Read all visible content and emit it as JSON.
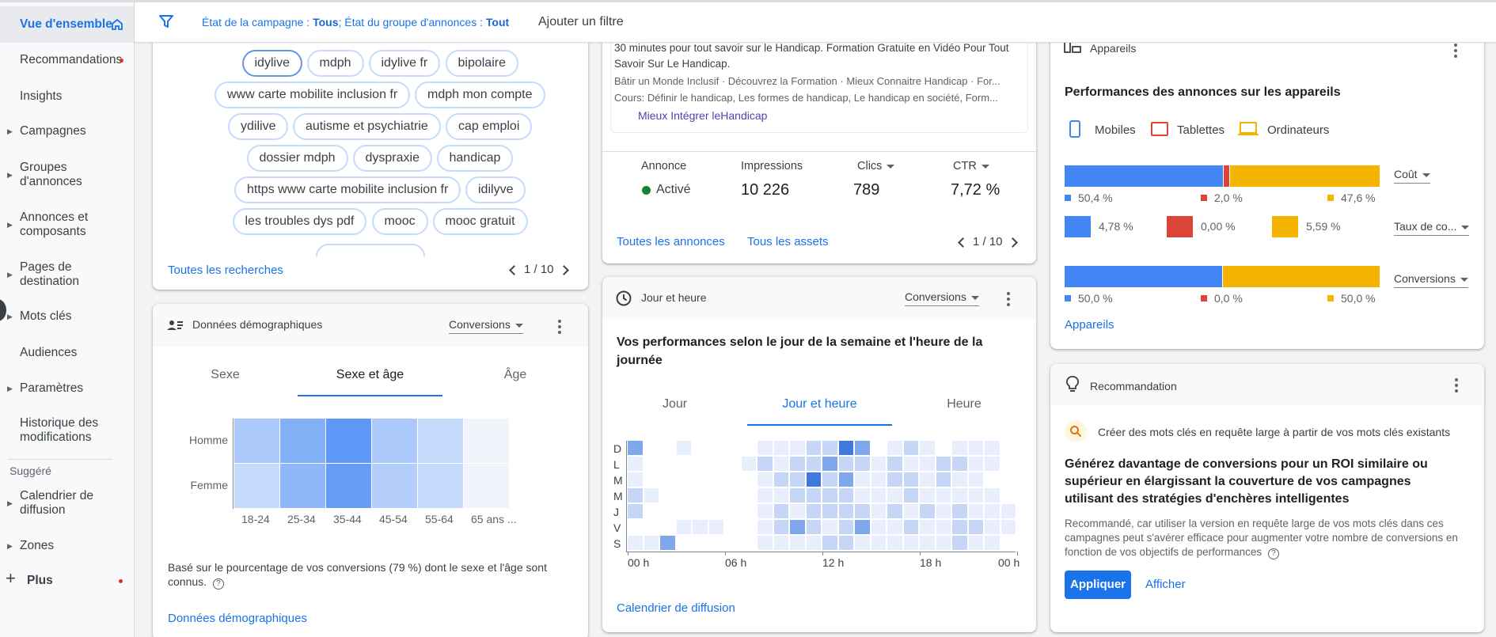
{
  "sidebar": {
    "items": [
      {
        "label": "Vue d'ensemble",
        "active": true
      },
      {
        "label": "Recommandations"
      },
      {
        "label": "Insights"
      },
      {
        "label": "Campagnes"
      },
      {
        "label": "Groupes d'annonces"
      },
      {
        "label": "Annonces et composants"
      },
      {
        "label": "Pages de destination"
      },
      {
        "label": "Mots clés"
      },
      {
        "label": "Audiences"
      },
      {
        "label": "Paramètres"
      },
      {
        "label": "Historique des modifications"
      }
    ],
    "suggested_label": "Suggéré",
    "suggested": [
      {
        "label": "Calendrier de diffusion"
      },
      {
        "label": "Zones"
      }
    ],
    "more_label": "Plus"
  },
  "filter_bar": {
    "campaign_state_label": "État de la campagne :",
    "campaign_state_value": "Tous",
    "adgroup_state_label": "; État du groupe d'annonces :",
    "adgroup_state_value": "Tout",
    "add_filter": "Ajouter un filtre"
  },
  "searches": {
    "chips": [
      "idylive",
      "mdph",
      "idylive fr",
      "bipolaire",
      "www carte mobilite inclusion fr",
      "mdph mon compte",
      "ydilive",
      "autisme et psychiatrie",
      "cap emploi",
      "dossier mdph",
      "dyspraxie",
      "handicap",
      "https www carte mobilite inclusion fr",
      "idilyve",
      "les troubles dys pdf",
      "mooc",
      "mooc gratuit"
    ],
    "link": "Toutes les recherches",
    "pager": "1 / 10"
  },
  "demographics": {
    "title": "Données démographiques",
    "metric": "Conversions",
    "tabs": [
      "Sexe",
      "Sexe et âge",
      "Âge"
    ],
    "rows": [
      "Homme",
      "Femme"
    ],
    "cols": [
      "18-24",
      "25-34",
      "35-44",
      "45-54",
      "55-64",
      "65 ans ..."
    ],
    "intensity": [
      [
        0.45,
        0.65,
        0.85,
        0.45,
        0.3,
        0.04
      ],
      [
        0.3,
        0.6,
        0.8,
        0.4,
        0.3,
        0.04
      ]
    ],
    "note": "Basé sur le pourcentage de vos conversions (79 %) dont le sexe et l'âge sont connus.",
    "link": "Données démographiques"
  },
  "ads": {
    "line1": "30 minutes pour tout savoir sur le Handicap. Formation Gratuite en Vidéo Pour Tout",
    "line2": "Savoir Sur Le Handicap.",
    "line3": "Bâtir un Monde Inclusif · Découvrez la Formation · Mieux Connaitre Handicap · For...",
    "line4": "Cours: Définir le handicap, Les formes de handicap, Le handicap en société, Form...",
    "sitelink": "Mieux Intégrer leHandicap",
    "headers": {
      "ad": "Annonce",
      "impressions": "Impressions",
      "clicks": "Clics",
      "ctr": "CTR"
    },
    "values": {
      "status": "Activé",
      "impressions": "10 226",
      "clicks": "789",
      "ctr": "7,72 %"
    },
    "link_all_ads": "Toutes les annonces",
    "link_all_assets": "Tous les assets",
    "pager": "1 / 10"
  },
  "day_hour": {
    "title": "Jour et heure",
    "metric": "Conversions",
    "heading": "Vos performances selon le jour de la semaine et l'heure de la journée",
    "tabs": [
      "Jour",
      "Jour et heure",
      "Heure"
    ],
    "days": [
      "D",
      "L",
      "M",
      "M",
      "J",
      "V",
      "S"
    ],
    "hours": [
      "00 h",
      "06 h",
      "12 h",
      "18 h",
      "00 h"
    ],
    "grid": [
      [
        3,
        0,
        0,
        1,
        0,
        0,
        0,
        0,
        1,
        1,
        1,
        2,
        2,
        4,
        3,
        0,
        1,
        2,
        1,
        0,
        1,
        1,
        1,
        0
      ],
      [
        1,
        0,
        0,
        0,
        0,
        0,
        0,
        1,
        2,
        1,
        2,
        2,
        3,
        2,
        2,
        1,
        2,
        1,
        1,
        2,
        2,
        1,
        1,
        0
      ],
      [
        1,
        0,
        0,
        0,
        0,
        0,
        0,
        0,
        1,
        2,
        2,
        4,
        2,
        3,
        1,
        1,
        2,
        2,
        1,
        2,
        1,
        1,
        0,
        0
      ],
      [
        2,
        1,
        0,
        0,
        0,
        0,
        0,
        0,
        1,
        1,
        2,
        2,
        2,
        2,
        1,
        1,
        1,
        2,
        1,
        1,
        1,
        1,
        1,
        0
      ],
      [
        2,
        0,
        0,
        0,
        0,
        0,
        0,
        0,
        1,
        2,
        1,
        2,
        2,
        2,
        2,
        1,
        2,
        1,
        2,
        1,
        2,
        1,
        1,
        1
      ],
      [
        0,
        0,
        0,
        1,
        1,
        1,
        0,
        0,
        1,
        2,
        3,
        2,
        1,
        2,
        3,
        1,
        1,
        2,
        1,
        1,
        2,
        2,
        1,
        1
      ],
      [
        1,
        1,
        3,
        0,
        0,
        0,
        0,
        0,
        1,
        1,
        1,
        1,
        2,
        2,
        1,
        1,
        1,
        1,
        1,
        1,
        2,
        1,
        1,
        0
      ]
    ],
    "link": "Calendrier de diffusion"
  },
  "devices": {
    "title": "Appareils",
    "heading": "Performances des annonces sur les appareils",
    "legend": [
      "Mobiles",
      "Tablettes",
      "Ordinateurs"
    ],
    "colors": {
      "mobile": "#4285f4",
      "tablet": "#db4437",
      "desktop": "#f4b400"
    },
    "cost": {
      "metric": "Coût",
      "values": [
        50.4,
        2.0,
        47.6
      ],
      "labels": [
        "50,4 %",
        "2,0 %",
        "47,6 %"
      ]
    },
    "rate": {
      "metric": "Taux de co...",
      "values": [
        4.78,
        0.0,
        5.59
      ],
      "labels": [
        "4,78 %",
        "0,00 %",
        "5,59 %"
      ]
    },
    "conv": {
      "metric": "Conversions",
      "values": [
        50.0,
        0.0,
        50.0
      ],
      "labels": [
        "50,0 %",
        "0,0 %",
        "50,0 %"
      ]
    },
    "link": "Appareils"
  },
  "recommendation": {
    "title": "Recommandation",
    "subtitle": "Créer des mots clés en requête large à partir de vos mots clés existants",
    "headline": "Générez davantage de conversions pour un ROI similaire ou supérieur en élargissant la couverture de vos campagnes utilisant des stratégies d'enchères intelligentes",
    "body": "Recommandé, car utiliser la version en requête large de vos mots clés dans ces campagnes peut s'avérer efficace pour augmenter votre nombre de conversions en fonction de vos objectifs de performances",
    "apply": "Appliquer",
    "view": "Afficher"
  }
}
